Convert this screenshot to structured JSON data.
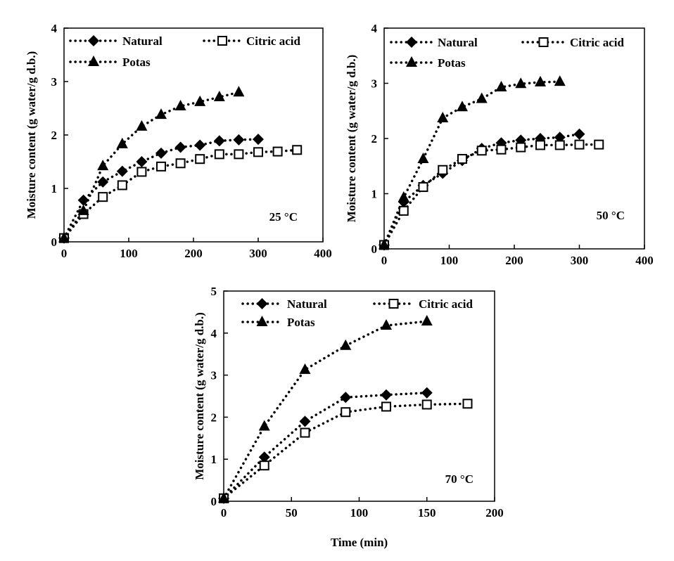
{
  "chart_data": [
    {
      "type": "line",
      "panel": "top-left",
      "annotation": "25 °C",
      "ylabel": "Moisture content (g water/g d.b.)",
      "xlabel": "",
      "xlim": [
        0,
        400
      ],
      "ylim": [
        0,
        4
      ],
      "xticks": [
        0,
        100,
        200,
        300,
        400
      ],
      "yticks": [
        0,
        1,
        2,
        3,
        4
      ],
      "legend_position": "top",
      "series": [
        {
          "name": "Natural",
          "marker": "diamond",
          "color": "#000000",
          "x": [
            0,
            30,
            60,
            90,
            120,
            150,
            180,
            210,
            240,
            270,
            300
          ],
          "y": [
            0.07,
            0.78,
            1.12,
            1.32,
            1.5,
            1.66,
            1.77,
            1.81,
            1.89,
            1.91,
            1.92
          ]
        },
        {
          "name": "Citric acid",
          "marker": "open-square",
          "color": "#000000",
          "x": [
            0,
            30,
            60,
            90,
            120,
            150,
            180,
            210,
            240,
            270,
            300,
            330,
            360
          ],
          "y": [
            0.07,
            0.52,
            0.84,
            1.06,
            1.31,
            1.41,
            1.47,
            1.55,
            1.64,
            1.64,
            1.68,
            1.69,
            1.72
          ]
        },
        {
          "name": "Potas",
          "marker": "triangle",
          "color": "#000000",
          "x": [
            0,
            30,
            60,
            90,
            120,
            150,
            180,
            210,
            240,
            270
          ],
          "y": [
            0.07,
            0.58,
            1.42,
            1.83,
            2.16,
            2.38,
            2.54,
            2.62,
            2.71,
            2.8
          ]
        }
      ]
    },
    {
      "type": "line",
      "panel": "top-right",
      "annotation": "50 °C",
      "ylabel": "Moisture content (g water/g d.b.)",
      "xlabel": "",
      "xlim": [
        0,
        400
      ],
      "ylim": [
        0,
        4
      ],
      "xticks": [
        0,
        100,
        200,
        300,
        400
      ],
      "yticks": [
        0,
        1,
        2,
        3,
        4
      ],
      "legend_position": "top",
      "series": [
        {
          "name": "Natural",
          "marker": "diamond",
          "color": "#000000",
          "x": [
            0,
            30,
            60,
            90,
            120,
            150,
            180,
            210,
            240,
            270,
            300
          ],
          "y": [
            0.07,
            0.85,
            1.15,
            1.37,
            1.6,
            1.82,
            1.92,
            1.97,
            2.0,
            2.02,
            2.08
          ]
        },
        {
          "name": "Citric acid",
          "marker": "open-square",
          "color": "#000000",
          "x": [
            0,
            30,
            60,
            90,
            120,
            150,
            180,
            210,
            240,
            270,
            300,
            330
          ],
          "y": [
            0.07,
            0.69,
            1.12,
            1.43,
            1.63,
            1.78,
            1.8,
            1.84,
            1.88,
            1.88,
            1.89,
            1.89
          ]
        },
        {
          "name": "Potas",
          "marker": "triangle",
          "color": "#000000",
          "x": [
            0,
            30,
            60,
            90,
            120,
            150,
            180,
            210,
            240,
            270
          ],
          "y": [
            0.07,
            0.93,
            1.63,
            2.37,
            2.57,
            2.72,
            2.93,
            2.99,
            3.02,
            3.03
          ]
        }
      ]
    },
    {
      "type": "line",
      "panel": "bottom-center",
      "annotation": "70 °C",
      "ylabel": "Moisture content (g water/g d.b.)",
      "xlabel": "Time (min)",
      "xlim": [
        0,
        200
      ],
      "ylim": [
        0,
        5
      ],
      "xticks": [
        0,
        50,
        100,
        150,
        200
      ],
      "yticks": [
        0,
        1,
        2,
        3,
        4,
        5
      ],
      "legend_position": "top",
      "series": [
        {
          "name": "Natural",
          "marker": "diamond",
          "color": "#000000",
          "x": [
            0,
            30,
            60,
            90,
            120,
            150
          ],
          "y": [
            0.07,
            1.05,
            1.9,
            2.47,
            2.53,
            2.58
          ]
        },
        {
          "name": "Citric acid",
          "marker": "open-square",
          "color": "#000000",
          "x": [
            0,
            30,
            60,
            90,
            120,
            150,
            180
          ],
          "y": [
            0.07,
            0.85,
            1.63,
            2.12,
            2.25,
            2.3,
            2.32
          ]
        },
        {
          "name": "Potas",
          "marker": "triangle",
          "color": "#000000",
          "x": [
            0,
            30,
            60,
            90,
            120,
            150
          ],
          "y": [
            0.07,
            1.78,
            3.13,
            3.7,
            4.18,
            4.28
          ]
        }
      ]
    }
  ]
}
